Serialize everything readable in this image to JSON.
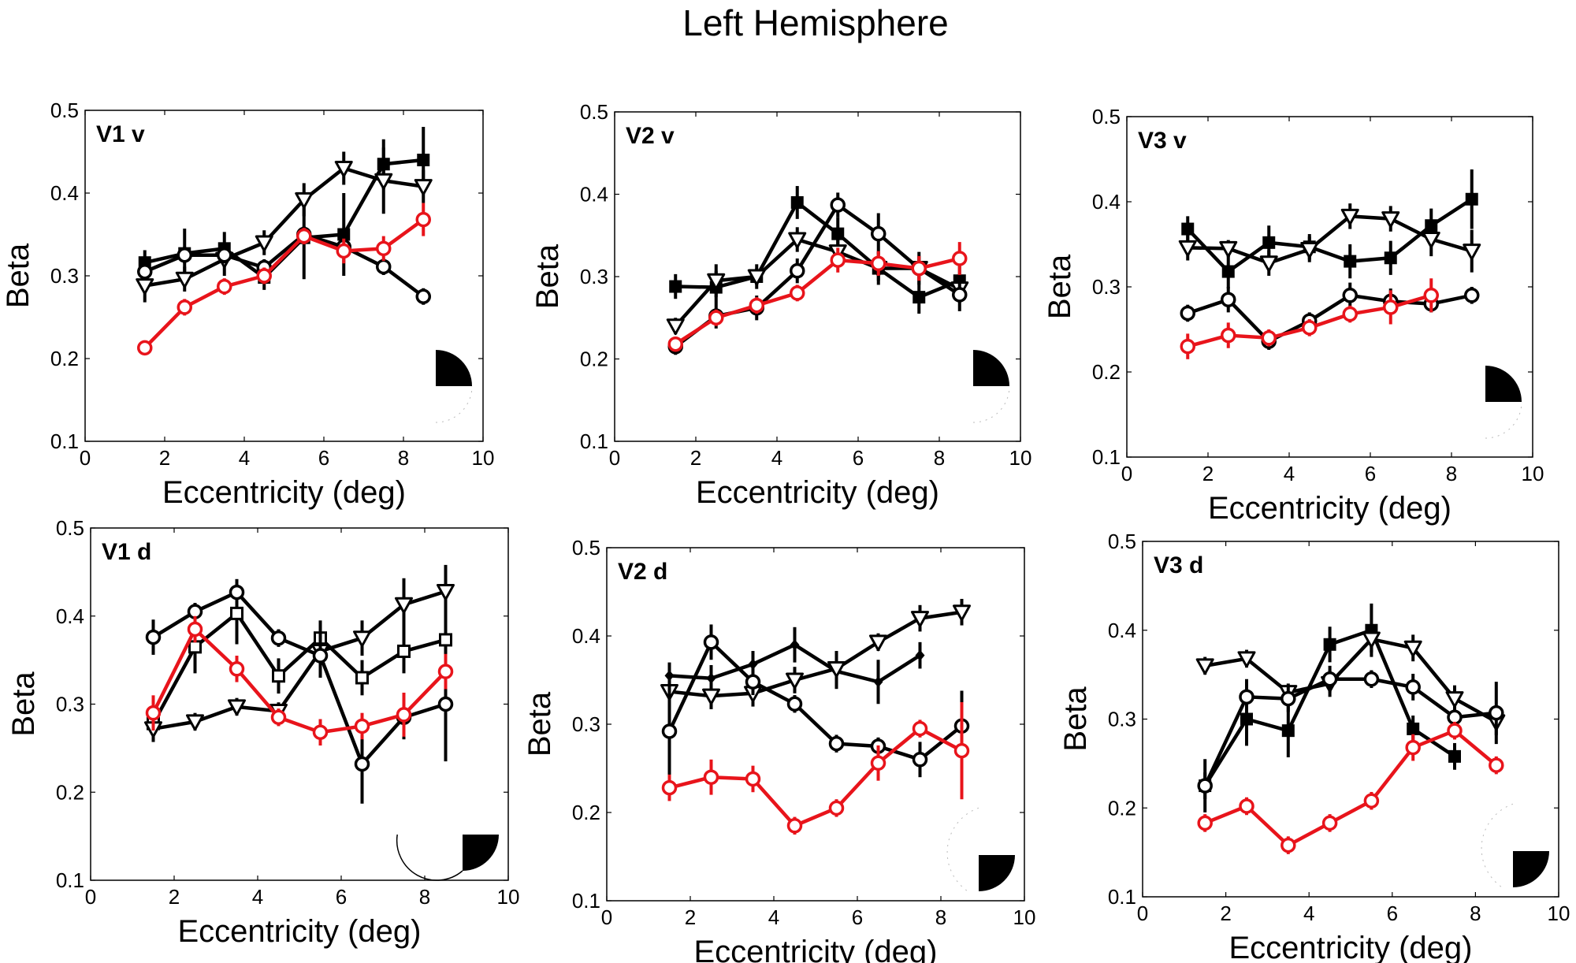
{
  "figure": {
    "title": "Left Hemisphere"
  },
  "colors": {
    "black_series": "#000000",
    "red_series": "#e8141b"
  },
  "chart_data": [
    {
      "type": "line",
      "panel": "V1 v",
      "xlabel": "Eccentricity (deg)",
      "ylabel": "Beta",
      "xlim": [
        0,
        10
      ],
      "ylim": [
        0.1,
        0.5
      ],
      "xticks": [
        "0",
        "2",
        "4",
        "6",
        "8",
        "10"
      ],
      "yticks": [
        "0.1",
        "0.2",
        "0.3",
        "0.4",
        "0.5"
      ],
      "inset": "wedge-upper-right",
      "series": [
        {
          "name": "filled square",
          "marker": "square-filled",
          "color": "#000000",
          "x": [
            1.5,
            2.5,
            3.5,
            4.5,
            5.5,
            6.5,
            7.5,
            8.5
          ],
          "y": [
            0.316,
            0.327,
            0.333,
            0.298,
            0.346,
            0.35,
            0.435,
            0.44
          ],
          "err": [
            0.015,
            0.03,
            0.02,
            0.015,
            0.05,
            0.05,
            0.03,
            0.04
          ]
        },
        {
          "name": "open triangle",
          "marker": "triangle-open",
          "color": "#000000",
          "x": [
            1.5,
            2.5,
            3.5,
            4.5,
            5.5,
            6.5,
            7.5,
            8.5
          ],
          "y": [
            0.288,
            0.296,
            0.32,
            0.34,
            0.392,
            0.43,
            0.415,
            0.408
          ],
          "err": [
            0.02,
            0.015,
            0.02,
            0.015,
            0.02,
            0.02,
            0.04,
            0.02
          ]
        },
        {
          "name": "open circle",
          "marker": "circle-open",
          "color": "#000000",
          "x": [
            1.5,
            2.5,
            3.5,
            4.5,
            5.5,
            6.5,
            7.5,
            8.5
          ],
          "y": [
            0.305,
            0.325,
            0.325,
            0.31,
            0.35,
            0.335,
            0.311,
            0.275
          ],
          "err": [
            0.01,
            0.01,
            0.01,
            0.01,
            0.01,
            0.01,
            0.01,
            0.01
          ]
        },
        {
          "name": "red circle",
          "marker": "circle-open",
          "color": "#e8141b",
          "x": [
            1.5,
            2.5,
            3.5,
            4.5,
            5.5,
            6.5,
            7.5,
            8.5
          ],
          "y": [
            0.213,
            0.262,
            0.287,
            0.3,
            0.348,
            0.33,
            0.333,
            0.368
          ],
          "err": [
            0.005,
            0.01,
            0.01,
            0.01,
            0.01,
            0.015,
            0.015,
            0.02
          ]
        }
      ]
    },
    {
      "type": "line",
      "panel": "V2 v",
      "xlabel": "Eccentricity (deg)",
      "ylabel": "Beta",
      "xlim": [
        0,
        10
      ],
      "ylim": [
        0.1,
        0.5
      ],
      "xticks": [
        "0",
        "2",
        "4",
        "6",
        "8",
        "10"
      ],
      "yticks": [
        "0.1",
        "0.2",
        "0.3",
        "0.4",
        "0.5"
      ],
      "inset": "wedge-upper-right",
      "series": [
        {
          "name": "filled square",
          "marker": "square-filled",
          "color": "#000000",
          "x": [
            1.5,
            2.5,
            3.5,
            4.5,
            5.5,
            6.5,
            7.5,
            8.5
          ],
          "y": [
            0.288,
            0.287,
            0.3,
            0.39,
            0.352,
            0.31,
            0.275,
            0.295
          ],
          "err": [
            0.015,
            0.02,
            0.015,
            0.02,
            0.02,
            0.02,
            0.02,
            0.02
          ]
        },
        {
          "name": "open triangle",
          "marker": "triangle-open",
          "color": "#000000",
          "x": [
            1.5,
            2.5,
            3.5,
            4.5,
            5.5,
            6.5,
            7.5,
            8.5
          ],
          "y": [
            0.24,
            0.295,
            0.3,
            0.345,
            0.33,
            0.31,
            0.31,
            0.285
          ],
          "err": [
            0.01,
            0.02,
            0.01,
            0.015,
            0.015,
            0.015,
            0.015,
            0.015
          ]
        },
        {
          "name": "open circle",
          "marker": "circle-open",
          "color": "#000000",
          "x": [
            1.5,
            2.5,
            3.5,
            4.5,
            5.5,
            6.5,
            7.5,
            8.5
          ],
          "y": [
            0.215,
            0.252,
            0.262,
            0.307,
            0.387,
            0.352,
            0.31,
            0.278
          ],
          "err": [
            0.01,
            0.015,
            0.015,
            0.015,
            0.015,
            0.025,
            0.02,
            0.02
          ]
        },
        {
          "name": "red circle",
          "marker": "circle-open",
          "color": "#e8141b",
          "x": [
            1.5,
            2.5,
            3.5,
            4.5,
            5.5,
            6.5,
            7.5,
            8.5
          ],
          "y": [
            0.218,
            0.25,
            0.265,
            0.28,
            0.32,
            0.316,
            0.31,
            0.322
          ],
          "err": [
            0.005,
            0.01,
            0.01,
            0.01,
            0.015,
            0.015,
            0.015,
            0.02
          ]
        }
      ]
    },
    {
      "type": "line",
      "panel": "V3 v",
      "xlabel": "Eccentricity (deg)",
      "ylabel": "Beta",
      "xlim": [
        0,
        10
      ],
      "ylim": [
        0.1,
        0.5
      ],
      "xticks": [
        "0",
        "2",
        "4",
        "6",
        "8",
        "10"
      ],
      "yticks": [
        "0.1",
        "0.2",
        "0.3",
        "0.4",
        "0.5"
      ],
      "inset": "wedge-upper-right",
      "series": [
        {
          "name": "filled square",
          "marker": "square-filled",
          "color": "#000000",
          "x": [
            1.5,
            2.5,
            3.5,
            4.5,
            5.5,
            6.5,
            7.5,
            8.5
          ],
          "y": [
            0.368,
            0.318,
            0.352,
            0.347,
            0.33,
            0.334,
            0.372,
            0.403
          ],
          "err": [
            0.015,
            0.02,
            0.02,
            0.015,
            0.02,
            0.02,
            0.02,
            0.035
          ]
        },
        {
          "name": "open triangle",
          "marker": "triangle-open",
          "color": "#000000",
          "x": [
            1.5,
            2.5,
            3.5,
            4.5,
            5.5,
            6.5,
            7.5,
            8.5
          ],
          "y": [
            0.346,
            0.345,
            0.328,
            0.344,
            0.383,
            0.38,
            0.356,
            0.342
          ],
          "err": [
            0.015,
            0.01,
            0.015,
            0.015,
            0.015,
            0.015,
            0.02,
            0.025
          ]
        },
        {
          "name": "open circle",
          "marker": "circle-open",
          "color": "#000000",
          "x": [
            1.5,
            2.5,
            3.5,
            4.5,
            5.5,
            6.5,
            7.5,
            8.5
          ],
          "y": [
            0.269,
            0.285,
            0.236,
            0.26,
            0.29,
            0.283,
            0.28,
            0.29
          ],
          "err": [
            0.01,
            0.015,
            0.01,
            0.01,
            0.015,
            0.015,
            0.01,
            0.01
          ]
        },
        {
          "name": "red circle",
          "marker": "circle-open",
          "color": "#e8141b",
          "x": [
            1.5,
            2.5,
            3.5,
            4.5,
            5.5,
            6.5,
            7.5
          ],
          "y": [
            0.23,
            0.243,
            0.24,
            0.252,
            0.268,
            0.276,
            0.29
          ],
          "err": [
            0.015,
            0.015,
            0.01,
            0.01,
            0.01,
            0.02,
            0.02
          ]
        }
      ]
    },
    {
      "type": "line",
      "panel": "V1 d",
      "xlabel": "Eccentricity (deg)",
      "ylabel": "Beta",
      "xlim": [
        0,
        10
      ],
      "ylim": [
        0.1,
        0.5
      ],
      "xticks": [
        "0",
        "2",
        "4",
        "6",
        "8",
        "10"
      ],
      "yticks": [
        "0.1",
        "0.2",
        "0.3",
        "0.4",
        "0.5"
      ],
      "inset": "wedge-lower-right",
      "series": [
        {
          "name": "open square",
          "marker": "square-open",
          "color": "#000000",
          "x": [
            1.5,
            2.5,
            3.5,
            4.5,
            5.5,
            6.5,
            7.5,
            8.5
          ],
          "y": [
            0.278,
            0.365,
            0.403,
            0.332,
            0.375,
            0.33,
            0.36,
            0.373
          ],
          "err": [
            0.015,
            0.03,
            0.035,
            0.02,
            0.02,
            0.02,
            0.025,
            0.035
          ]
        },
        {
          "name": "open triangle",
          "marker": "triangle-open",
          "color": "#000000",
          "x": [
            1.5,
            2.5,
            3.5,
            4.5,
            5.5,
            6.5,
            7.5,
            8.5
          ],
          "y": [
            0.272,
            0.28,
            0.297,
            0.292,
            0.36,
            0.375,
            0.413,
            0.428
          ],
          "err": [
            0.015,
            0.01,
            0.01,
            0.01,
            0.02,
            0.02,
            0.03,
            0.03
          ]
        },
        {
          "name": "open circle",
          "marker": "circle-open",
          "color": "#000000",
          "x": [
            1.5,
            2.5,
            3.5,
            4.5,
            5.5,
            6.5,
            7.5,
            8.5
          ],
          "y": [
            0.376,
            0.405,
            0.427,
            0.375,
            0.355,
            0.232,
            0.285,
            0.3
          ],
          "err": [
            0.02,
            0.01,
            0.015,
            0.01,
            0.025,
            0.045,
            0.025,
            0.065
          ]
        },
        {
          "name": "red circle",
          "marker": "circle-open",
          "color": "#e8141b",
          "x": [
            1.5,
            2.5,
            3.5,
            4.5,
            5.5,
            6.5,
            7.5,
            8.5
          ],
          "y": [
            0.29,
            0.385,
            0.34,
            0.285,
            0.268,
            0.275,
            0.288,
            0.337
          ],
          "err": [
            0.02,
            0.015,
            0.015,
            0.01,
            0.015,
            0.015,
            0.025,
            0.02
          ]
        }
      ]
    },
    {
      "type": "line",
      "panel": "V2 d",
      "xlabel": "Eccentricity (deg)",
      "ylabel": "Beta",
      "xlim": [
        0,
        10
      ],
      "ylim": [
        0.1,
        0.5
      ],
      "xticks": [
        "0",
        "2",
        "4",
        "6",
        "8",
        "10"
      ],
      "yticks": [
        "0.1",
        "0.2",
        "0.3",
        "0.4",
        "0.5"
      ],
      "inset": "wedge-lower-right",
      "series": [
        {
          "name": "filled diamond",
          "marker": "diamond-filled",
          "color": "#000000",
          "x": [
            1.5,
            2.5,
            3.5,
            4.5,
            5.5,
            6.5,
            7.5
          ],
          "y": [
            0.355,
            0.352,
            0.368,
            0.39,
            0.36,
            0.348,
            0.378
          ],
          "err": [
            0.015,
            0.015,
            0.015,
            0.02,
            0.02,
            0.025,
            0.015
          ]
        },
        {
          "name": "open triangle",
          "marker": "triangle-open",
          "color": "#000000",
          "x": [
            1.5,
            2.5,
            3.5,
            4.5,
            5.5,
            6.5,
            7.5,
            8.5
          ],
          "y": [
            0.337,
            0.332,
            0.335,
            0.35,
            0.363,
            0.393,
            0.42,
            0.427
          ],
          "err": [
            0.02,
            0.015,
            0.015,
            0.015,
            0.02,
            0.01,
            0.015,
            0.015
          ]
        },
        {
          "name": "open circle",
          "marker": "circle-open",
          "color": "#000000",
          "x": [
            1.5,
            2.5,
            3.5,
            4.5,
            5.5,
            6.5,
            7.5,
            8.5
          ],
          "y": [
            0.292,
            0.393,
            0.348,
            0.323,
            0.278,
            0.275,
            0.26,
            0.298
          ],
          "err": [
            0.065,
            0.02,
            0.015,
            0.01,
            0.01,
            0.01,
            0.02,
            0.04
          ]
        },
        {
          "name": "red circle",
          "marker": "circle-open",
          "color": "#e8141b",
          "x": [
            1.5,
            2.5,
            3.5,
            4.5,
            5.5,
            6.5,
            7.5,
            8.5
          ],
          "y": [
            0.228,
            0.24,
            0.238,
            0.185,
            0.205,
            0.256,
            0.295,
            0.27
          ],
          "err": [
            0.015,
            0.02,
            0.015,
            0.01,
            0.01,
            0.02,
            0.01,
            0.055
          ]
        }
      ]
    },
    {
      "type": "line",
      "panel": "V3 d",
      "xlabel": "Eccentricity (deg)",
      "ylabel": "Beta",
      "xlim": [
        0,
        10
      ],
      "ylim": [
        0.1,
        0.5
      ],
      "xticks": [
        "0",
        "2",
        "4",
        "6",
        "8",
        "10"
      ],
      "yticks": [
        "0.1",
        "0.2",
        "0.3",
        "0.4",
        "0.5"
      ],
      "inset": "wedge-lower-right",
      "series": [
        {
          "name": "filled square",
          "marker": "square-filled",
          "color": "#000000",
          "x": [
            1.5,
            2.5,
            3.5,
            4.5,
            5.5,
            6.5,
            7.5
          ],
          "y": [
            0.225,
            0.3,
            0.287,
            0.384,
            0.4,
            0.289,
            0.258
          ],
          "err": [
            0.03,
            0.03,
            0.03,
            0.02,
            0.03,
            0.015,
            0.015
          ]
        },
        {
          "name": "open triangle",
          "marker": "triangle-open",
          "color": "#000000",
          "x": [
            1.5,
            2.5,
            3.5,
            4.5,
            5.5,
            6.5,
            7.5,
            8.5
          ],
          "y": [
            0.36,
            0.368,
            0.33,
            0.34,
            0.39,
            0.38,
            0.323,
            0.297
          ],
          "err": [
            0.01,
            0.01,
            0.01,
            0.015,
            0.015,
            0.015,
            0.015,
            0.015
          ]
        },
        {
          "name": "open circle",
          "marker": "circle-open",
          "color": "#000000",
          "x": [
            1.5,
            2.5,
            3.5,
            4.5,
            5.5,
            6.5,
            7.5,
            8.5
          ],
          "y": [
            0.225,
            0.325,
            0.323,
            0.345,
            0.345,
            0.336,
            0.302,
            0.307
          ],
          "err": [
            0.015,
            0.02,
            0.015,
            0.015,
            0.01,
            0.015,
            0.01,
            0.035
          ]
        },
        {
          "name": "red circle",
          "marker": "circle-open",
          "color": "#e8141b",
          "x": [
            1.5,
            2.5,
            3.5,
            4.5,
            5.5,
            6.5,
            7.5,
            8.5
          ],
          "y": [
            0.183,
            0.202,
            0.158,
            0.183,
            0.208,
            0.268,
            0.287,
            0.248
          ],
          "err": [
            0.01,
            0.01,
            0.01,
            0.01,
            0.01,
            0.015,
            0.01,
            0.01
          ]
        }
      ]
    }
  ]
}
